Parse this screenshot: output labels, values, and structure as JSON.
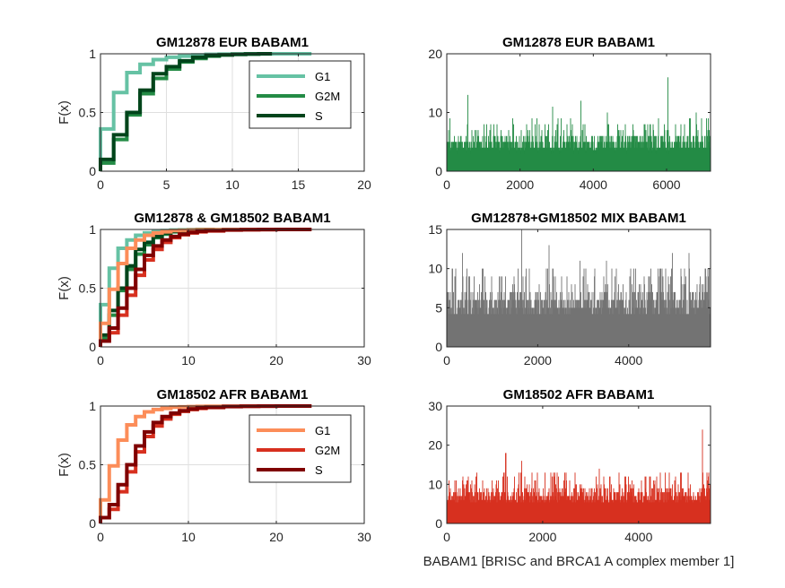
{
  "figure_xlabel": "BABAM1 [BRISC and BRCA1 A complex member 1]",
  "chart_data": [
    {
      "id": "p1",
      "type": "line",
      "kind": "ecdf",
      "title": "GM12878 EUR BABAM1",
      "ylabel": "F(x)",
      "xlim": [
        0,
        20
      ],
      "ylim": [
        0,
        1
      ],
      "xticks": [
        0,
        5,
        10,
        15,
        20
      ],
      "yticks": [
        0,
        0.5,
        1
      ],
      "xtick_labels": [
        "0",
        "5",
        "10",
        "15",
        "20"
      ],
      "ytick_labels": [
        "0",
        "0.5",
        "1"
      ],
      "grid": true,
      "legend": "top-right",
      "series": [
        {
          "name": "G1",
          "color": "#66c2a4",
          "x": [
            0,
            1,
            2,
            3,
            4,
            5,
            6,
            7,
            8,
            9,
            10,
            11,
            12,
            13,
            14,
            15,
            16
          ],
          "y": [
            0.36,
            0.67,
            0.84,
            0.91,
            0.95,
            0.97,
            0.98,
            0.99,
            0.995,
            0.997,
            0.998,
            0.999,
            0.999,
            1,
            1,
            1,
            1
          ]
        },
        {
          "name": "G2M",
          "color": "#238b45",
          "x": [
            0,
            1,
            2,
            3,
            4,
            5,
            6,
            7,
            8,
            9,
            10,
            11,
            12,
            13
          ],
          "y": [
            0.07,
            0.27,
            0.48,
            0.66,
            0.79,
            0.87,
            0.93,
            0.96,
            0.98,
            0.99,
            0.995,
            0.998,
            1,
            1
          ]
        },
        {
          "name": "S",
          "color": "#00441b",
          "x": [
            0,
            1,
            2,
            3,
            4,
            5,
            6,
            7,
            8,
            9,
            10,
            11,
            12,
            13
          ],
          "y": [
            0.1,
            0.31,
            0.5,
            0.69,
            0.83,
            0.89,
            0.94,
            0.97,
            0.985,
            0.99,
            0.995,
            0.998,
            1,
            1
          ]
        }
      ]
    },
    {
      "id": "p2",
      "type": "bar",
      "kind": "counts",
      "title": "GM12878 EUR BABAM1",
      "xlim": [
        0,
        7200
      ],
      "ylim": [
        0,
        20
      ],
      "xticks": [
        0,
        2000,
        4000,
        6000
      ],
      "yticks": [
        0,
        10,
        20
      ],
      "xtick_labels": [
        "0",
        "2000",
        "4000",
        "6000"
      ],
      "ytick_labels": [
        "0",
        "10",
        "20"
      ],
      "grid": false,
      "color": "#238b45",
      "n_cells": 7200,
      "typical_max": 6,
      "max": 16,
      "peaks": [
        [
          580,
          13
        ],
        [
          1280,
          10
        ],
        [
          2890,
          11
        ],
        [
          3660,
          12
        ],
        [
          6040,
          16
        ],
        [
          6810,
          10
        ],
        [
          1720,
          9
        ],
        [
          4380,
          10
        ]
      ]
    },
    {
      "id": "p3",
      "type": "line",
      "kind": "ecdf",
      "title": "GM12878 & GM18502 BABAM1",
      "ylabel": "F(x)",
      "xlim": [
        0,
        30
      ],
      "ylim": [
        0,
        1
      ],
      "xticks": [
        0,
        10,
        20,
        30
      ],
      "yticks": [
        0,
        0.5,
        1
      ],
      "xtick_labels": [
        "0",
        "10",
        "20",
        "30"
      ],
      "ytick_labels": [
        "0",
        "0.5",
        "1"
      ],
      "grid": true,
      "legend": "none",
      "series": [
        {
          "color": "#66c2a4",
          "x": [
            0,
            1,
            2,
            3,
            4,
            5,
            6,
            7,
            8,
            9,
            10,
            11,
            12,
            13,
            14,
            15,
            16
          ],
          "y": [
            0.36,
            0.67,
            0.84,
            0.91,
            0.95,
            0.97,
            0.98,
            0.99,
            0.995,
            0.997,
            0.998,
            0.999,
            0.999,
            1,
            1,
            1,
            1
          ]
        },
        {
          "color": "#238b45",
          "x": [
            0,
            1,
            2,
            3,
            4,
            5,
            6,
            7,
            8,
            9,
            10,
            11,
            12,
            13
          ],
          "y": [
            0.07,
            0.27,
            0.48,
            0.66,
            0.79,
            0.87,
            0.93,
            0.96,
            0.98,
            0.99,
            0.995,
            0.998,
            1,
            1
          ]
        },
        {
          "color": "#00441b",
          "x": [
            0,
            1,
            2,
            3,
            4,
            5,
            6,
            7,
            8,
            9,
            10,
            11,
            12,
            13
          ],
          "y": [
            0.1,
            0.31,
            0.5,
            0.69,
            0.83,
            0.89,
            0.94,
            0.97,
            0.985,
            0.99,
            0.995,
            0.998,
            1,
            1
          ]
        },
        {
          "color": "#fc8d59",
          "x": [
            0,
            1,
            2,
            3,
            4,
            5,
            6,
            7,
            8,
            9,
            10,
            11,
            12,
            14,
            16,
            18,
            20,
            22,
            24
          ],
          "y": [
            0.2,
            0.49,
            0.71,
            0.84,
            0.91,
            0.95,
            0.97,
            0.98,
            0.99,
            0.993,
            0.995,
            0.997,
            0.998,
            0.999,
            0.999,
            1,
            1,
            1,
            1
          ]
        },
        {
          "color": "#d7301f",
          "x": [
            0,
            1,
            2,
            3,
            4,
            5,
            6,
            7,
            8,
            9,
            10,
            11,
            12,
            14,
            16,
            18,
            20,
            22,
            24
          ],
          "y": [
            0.05,
            0.12,
            0.27,
            0.44,
            0.61,
            0.74,
            0.83,
            0.89,
            0.93,
            0.955,
            0.97,
            0.98,
            0.988,
            0.995,
            0.998,
            0.999,
            1,
            1,
            1
          ]
        },
        {
          "color": "#7f0000",
          "x": [
            0,
            1,
            2,
            3,
            4,
            5,
            6,
            7,
            8,
            9,
            10,
            11,
            12,
            14,
            16,
            18,
            20,
            22,
            24
          ],
          "y": [
            0.05,
            0.16,
            0.33,
            0.5,
            0.66,
            0.78,
            0.86,
            0.91,
            0.94,
            0.96,
            0.975,
            0.985,
            0.99,
            0.996,
            0.998,
            0.999,
            1,
            1,
            1
          ]
        }
      ]
    },
    {
      "id": "p4",
      "type": "bar",
      "kind": "counts",
      "title": "GM12878+GM18502 MIX BABAM1",
      "xlim": [
        0,
        5800
      ],
      "ylim": [
        0,
        15
      ],
      "xticks": [
        0,
        2000,
        4000
      ],
      "yticks": [
        0,
        5,
        10,
        15
      ],
      "xtick_labels": [
        "0",
        "2000",
        "4000"
      ],
      "ytick_labels": [
        "0",
        "5",
        "10",
        "15"
      ],
      "grid": false,
      "color": "#737373",
      "n_cells": 5800,
      "typical_max": 7,
      "max": 15,
      "peaks": [
        [
          1650,
          15
        ],
        [
          2250,
          13
        ],
        [
          2930,
          11
        ],
        [
          3510,
          11
        ],
        [
          4960,
          12
        ],
        [
          5330,
          12
        ],
        [
          350,
          12
        ],
        [
          800,
          10
        ],
        [
          4150,
          10
        ]
      ]
    },
    {
      "id": "p5",
      "type": "line",
      "kind": "ecdf",
      "title": "GM18502 AFR BABAM1",
      "ylabel": "F(x)",
      "xlim": [
        0,
        30
      ],
      "ylim": [
        0,
        1
      ],
      "xticks": [
        0,
        10,
        20,
        30
      ],
      "yticks": [
        0,
        0.5,
        1
      ],
      "xtick_labels": [
        "0",
        "10",
        "20",
        "30"
      ],
      "ytick_labels": [
        "0",
        "0.5",
        "1"
      ],
      "grid": true,
      "legend": "top-right",
      "series": [
        {
          "name": "G1",
          "color": "#fc8d59",
          "x": [
            0,
            1,
            2,
            3,
            4,
            5,
            6,
            7,
            8,
            9,
            10,
            11,
            12,
            14,
            16,
            18,
            20,
            22,
            24
          ],
          "y": [
            0.2,
            0.49,
            0.71,
            0.84,
            0.91,
            0.95,
            0.97,
            0.98,
            0.99,
            0.993,
            0.995,
            0.997,
            0.998,
            0.999,
            0.999,
            1,
            1,
            1,
            1
          ]
        },
        {
          "name": "G2M",
          "color": "#d7301f",
          "x": [
            0,
            1,
            2,
            3,
            4,
            5,
            6,
            7,
            8,
            9,
            10,
            11,
            12,
            14,
            16,
            18,
            20,
            22,
            24
          ],
          "y": [
            0.05,
            0.12,
            0.27,
            0.44,
            0.61,
            0.74,
            0.83,
            0.89,
            0.93,
            0.955,
            0.97,
            0.98,
            0.988,
            0.995,
            0.998,
            0.999,
            1,
            1,
            1
          ]
        },
        {
          "name": "S",
          "color": "#7f0000",
          "x": [
            0,
            1,
            2,
            3,
            4,
            5,
            6,
            7,
            8,
            9,
            10,
            11,
            12,
            14,
            16,
            18,
            20,
            22,
            24
          ],
          "y": [
            0.05,
            0.16,
            0.33,
            0.5,
            0.66,
            0.78,
            0.86,
            0.91,
            0.94,
            0.96,
            0.975,
            0.985,
            0.99,
            0.996,
            0.998,
            0.999,
            1,
            1,
            1
          ]
        }
      ]
    },
    {
      "id": "p6",
      "type": "bar",
      "kind": "counts",
      "title": "GM18502 AFR BABAM1",
      "xlim": [
        0,
        5500
      ],
      "ylim": [
        0,
        30
      ],
      "xticks": [
        0,
        2000,
        4000
      ],
      "yticks": [
        0,
        10,
        20,
        30
      ],
      "xtick_labels": [
        "0",
        "2000",
        "4000"
      ],
      "ytick_labels": [
        "0",
        "10",
        "20",
        "30"
      ],
      "grid": false,
      "color": "#d7301f",
      "n_cells": 5500,
      "typical_max": 9,
      "max": 24,
      "peaks": [
        [
          5330,
          24
        ],
        [
          1230,
          18
        ],
        [
          1560,
          16
        ],
        [
          3180,
          14
        ],
        [
          2050,
          13
        ],
        [
          2560,
          11
        ],
        [
          4150,
          12
        ],
        [
          450,
          12
        ],
        [
          4750,
          11
        ]
      ]
    }
  ]
}
